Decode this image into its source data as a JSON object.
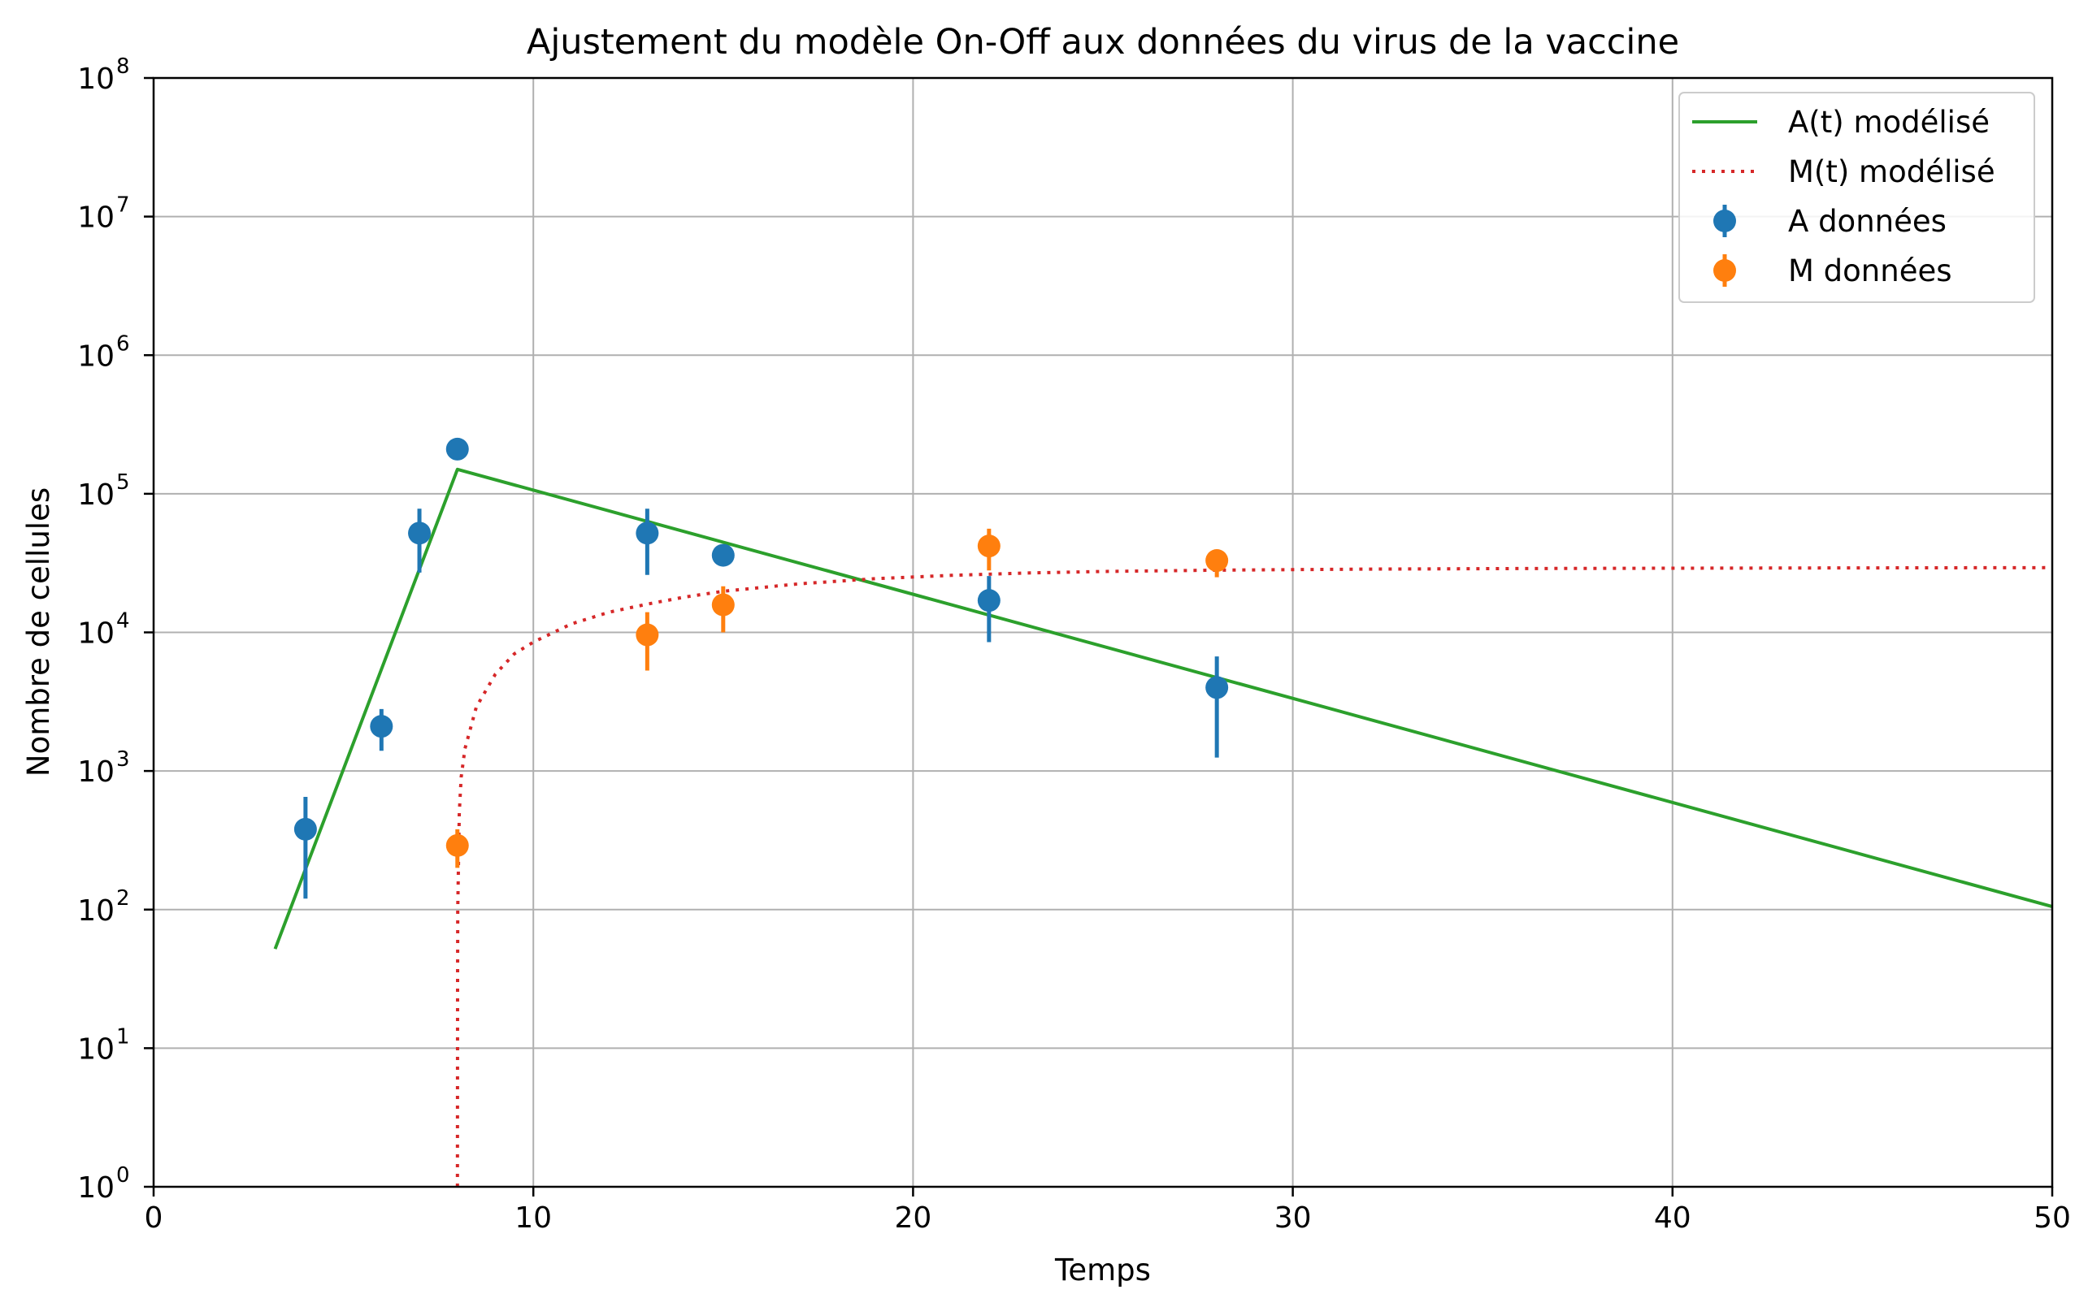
{
  "chart_data": {
    "type": "line",
    "title": "Ajustement du modèle On-Off aux données du virus de la vaccine",
    "xlabel": "Temps",
    "ylabel": "Nombre de cellules",
    "xlim": [
      0,
      50
    ],
    "ylim": [
      1,
      100000000
    ],
    "yscale": "log",
    "grid": true,
    "legend_position": "top-right",
    "xticks": [
      {
        "value": 0,
        "label": "0"
      },
      {
        "value": 10,
        "label": "10"
      },
      {
        "value": 20,
        "label": "20"
      },
      {
        "value": 30,
        "label": "30"
      },
      {
        "value": 40,
        "label": "40"
      },
      {
        "value": 50,
        "label": "50"
      }
    ],
    "yticks": [
      {
        "exp": 0,
        "base": "10",
        "sup": "0"
      },
      {
        "exp": 1,
        "base": "10",
        "sup": "1"
      },
      {
        "exp": 2,
        "base": "10",
        "sup": "2"
      },
      {
        "exp": 3,
        "base": "10",
        "sup": "3"
      },
      {
        "exp": 4,
        "base": "10",
        "sup": "4"
      },
      {
        "exp": 5,
        "base": "10",
        "sup": "5"
      },
      {
        "exp": 6,
        "base": "10",
        "sup": "6"
      },
      {
        "exp": 7,
        "base": "10",
        "sup": "7"
      },
      {
        "exp": 8,
        "base": "10",
        "sup": "8"
      }
    ],
    "lines": [
      {
        "name": "A(t) modélisé",
        "color": "#2ca02c",
        "style": "solid",
        "points": [
          [
            3.2,
            52
          ],
          [
            8.0,
            150000
          ],
          [
            50,
            105
          ]
        ]
      },
      {
        "name": "M(t) modélisé",
        "color": "#d62728",
        "style": "dotted",
        "points": [
          [
            8.0,
            1
          ],
          [
            8.005,
            30
          ],
          [
            8.01,
            100
          ],
          [
            8.05,
            500
          ],
          [
            8.1,
            900
          ],
          [
            8.2,
            1450
          ],
          [
            8.5,
            2900
          ],
          [
            9.0,
            5000
          ],
          [
            9.5,
            7000
          ],
          [
            10,
            8500
          ],
          [
            11,
            11500
          ],
          [
            12,
            14000
          ],
          [
            13,
            16000
          ],
          [
            14,
            18000
          ],
          [
            15,
            19800
          ],
          [
            17,
            22400
          ],
          [
            19,
            24400
          ],
          [
            21,
            25800
          ],
          [
            23,
            26800
          ],
          [
            25,
            27500
          ],
          [
            28,
            28100
          ],
          [
            32,
            28600
          ],
          [
            36,
            28900
          ],
          [
            40,
            29050
          ],
          [
            45,
            29200
          ],
          [
            50,
            29300
          ]
        ]
      }
    ],
    "scatter": [
      {
        "name": "A données",
        "color": "#1f77b4",
        "points": [
          {
            "x": 4,
            "y": 380,
            "low": 120,
            "high": 650
          },
          {
            "x": 6,
            "y": 2100,
            "low": 1400,
            "high": 2800
          },
          {
            "x": 7,
            "y": 52000,
            "low": 27000,
            "high": 78000
          },
          {
            "x": 8,
            "y": 210000,
            "low": 210000,
            "high": 210000
          },
          {
            "x": 13,
            "y": 52000,
            "low": 26000,
            "high": 78000
          },
          {
            "x": 15,
            "y": 36000,
            "low": 36000,
            "high": 36000
          },
          {
            "x": 22,
            "y": 17000,
            "low": 8500,
            "high": 25500
          },
          {
            "x": 28,
            "y": 4000,
            "low": 1250,
            "high": 6700
          }
        ]
      },
      {
        "name": "M données",
        "color": "#ff7f0e",
        "points": [
          {
            "x": 8,
            "y": 290,
            "low": 200,
            "high": 380
          },
          {
            "x": 13,
            "y": 9600,
            "low": 5300,
            "high": 14000
          },
          {
            "x": 15,
            "y": 15800,
            "low": 10000,
            "high": 21500
          },
          {
            "x": 22,
            "y": 42000,
            "low": 28000,
            "high": 56000
          },
          {
            "x": 28,
            "y": 33000,
            "low": 25000,
            "high": 39000
          }
        ]
      }
    ]
  }
}
